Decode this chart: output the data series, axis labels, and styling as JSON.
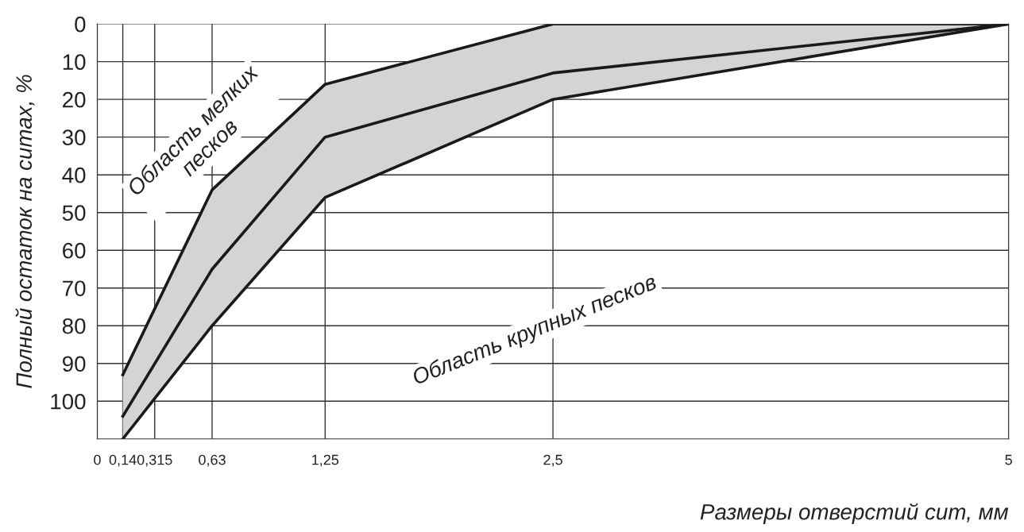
{
  "chart_data": {
    "type": "line",
    "ylabel": "Полный остаток на ситах, %",
    "xlabel": "Размеры отверстий сит, мм",
    "x": [
      0.14,
      0.63,
      1.25,
      2.5,
      5
    ],
    "series": [
      {
        "color": "#1a1a1a",
        "values": [
          93,
          44,
          16,
          0,
          0
        ]
      },
      {
        "color": "#1a1a1a",
        "values": [
          104,
          65,
          30,
          13,
          0
        ],
        "lower": [
          110,
          80,
          46,
          20,
          0
        ],
        "upper": [
          93,
          44,
          16,
          0,
          0
        ]
      },
      {
        "color": "#1a1a1a",
        "values": [
          110,
          80,
          46,
          20,
          0
        ]
      }
    ],
    "xlim": [
      0,
      5
    ],
    "xticks": [
      0,
      {
        "value": 0.14,
        "label": "0,14"
      },
      {
        "value": 0.315,
        "label": "0,315"
      },
      {
        "value": 0.63,
        "label": "0,63"
      },
      {
        "value": 1.25,
        "label": "1,25"
      },
      {
        "value": 2.5,
        "label": "2,5"
      },
      5
    ],
    "ylim": [
      110,
      0
    ],
    "yticks": [
      0,
      10,
      20,
      30,
      40,
      50,
      60,
      70,
      80,
      90,
      100
    ],
    "grid": true,
    "marker": "none",
    "line_style": "solid",
    "annotations": [
      "Область мелких\nпесков",
      "Область крупных песков"
    ]
  }
}
